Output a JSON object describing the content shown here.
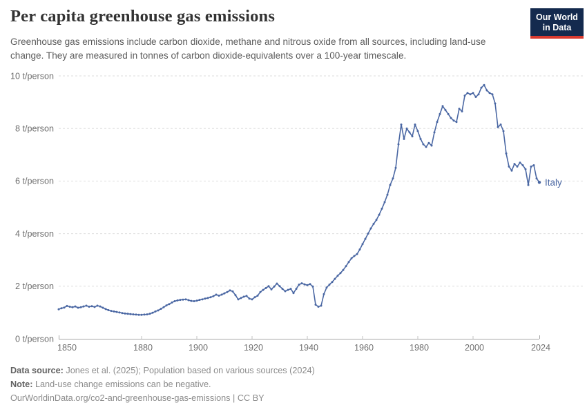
{
  "header": {
    "title": "Per capita greenhouse gas emissions",
    "subtitle": "Greenhouse gas emissions include carbon dioxide, methane and nitrous oxide from all sources, including land-use change. They are measured in tonnes of carbon dioxide-equivalents over a 100-year timescale.",
    "logo": {
      "line1": "Our World",
      "line2": "in Data",
      "bg_color": "#142a4e",
      "stripe_color": "#d93a2f"
    }
  },
  "footer": {
    "source_label": "Data source:",
    "source_text": " Jones et al. (2025); Population based on various sources (2024)",
    "note_label": "Note:",
    "note_text": " Land-use change emissions can be negative.",
    "license_line": "OurWorldinData.org/co2-and-greenhouse-gas-emissions | CC BY"
  },
  "chart_data": {
    "type": "line",
    "title": "Per capita greenhouse gas emissions",
    "xlabel": "",
    "ylabel": "t/person",
    "xlim": [
      1850,
      2024
    ],
    "ylim": [
      0,
      10
    ],
    "grid": "horizontal-dashed",
    "x_ticks": [
      1850,
      1880,
      1900,
      1920,
      1940,
      1960,
      1980,
      2000,
      2024
    ],
    "y_ticks": {
      "values": [
        0,
        2,
        4,
        6,
        8,
        10
      ],
      "labels": [
        "0 t/person",
        "2 t/person",
        "4 t/person",
        "6 t/person",
        "8 t/person",
        "10 t/person"
      ]
    },
    "x": [
      1850,
      1851,
      1852,
      1853,
      1854,
      1855,
      1856,
      1857,
      1858,
      1859,
      1860,
      1861,
      1862,
      1863,
      1864,
      1865,
      1866,
      1867,
      1868,
      1869,
      1870,
      1871,
      1872,
      1873,
      1874,
      1875,
      1876,
      1877,
      1878,
      1879,
      1880,
      1881,
      1882,
      1883,
      1884,
      1885,
      1886,
      1887,
      1888,
      1889,
      1890,
      1891,
      1892,
      1893,
      1894,
      1895,
      1896,
      1897,
      1898,
      1899,
      1900,
      1901,
      1902,
      1903,
      1904,
      1905,
      1906,
      1907,
      1908,
      1909,
      1910,
      1911,
      1912,
      1913,
      1914,
      1915,
      1916,
      1917,
      1918,
      1919,
      1920,
      1921,
      1922,
      1923,
      1924,
      1925,
      1926,
      1927,
      1928,
      1929,
      1930,
      1931,
      1932,
      1933,
      1934,
      1935,
      1936,
      1937,
      1938,
      1939,
      1940,
      1941,
      1942,
      1943,
      1944,
      1945,
      1946,
      1947,
      1948,
      1949,
      1950,
      1951,
      1952,
      1953,
      1954,
      1955,
      1956,
      1957,
      1958,
      1959,
      1960,
      1961,
      1962,
      1963,
      1964,
      1965,
      1966,
      1967,
      1968,
      1969,
      1970,
      1971,
      1972,
      1973,
      1974,
      1975,
      1976,
      1977,
      1978,
      1979,
      1980,
      1981,
      1982,
      1983,
      1984,
      1985,
      1986,
      1987,
      1988,
      1989,
      1990,
      1991,
      1992,
      1993,
      1994,
      1995,
      1996,
      1997,
      1998,
      1999,
      2000,
      2001,
      2002,
      2003,
      2004,
      2005,
      2006,
      2007,
      2008,
      2009,
      2010,
      2011,
      2012,
      2013,
      2014,
      2015,
      2016,
      2017,
      2018,
      2019,
      2020,
      2021,
      2022,
      2023,
      2024
    ],
    "series": [
      {
        "name": "Italy",
        "color": "#4a67a3",
        "values": [
          1.12,
          1.16,
          1.19,
          1.25,
          1.22,
          1.2,
          1.23,
          1.18,
          1.2,
          1.23,
          1.26,
          1.22,
          1.24,
          1.21,
          1.26,
          1.23,
          1.18,
          1.13,
          1.09,
          1.06,
          1.04,
          1.02,
          1.0,
          0.98,
          0.96,
          0.95,
          0.94,
          0.93,
          0.92,
          0.91,
          0.91,
          0.92,
          0.93,
          0.95,
          0.99,
          1.04,
          1.08,
          1.14,
          1.2,
          1.27,
          1.32,
          1.38,
          1.43,
          1.46,
          1.48,
          1.49,
          1.5,
          1.47,
          1.44,
          1.43,
          1.45,
          1.48,
          1.5,
          1.53,
          1.55,
          1.58,
          1.62,
          1.68,
          1.64,
          1.68,
          1.73,
          1.78,
          1.84,
          1.8,
          1.66,
          1.5,
          1.55,
          1.6,
          1.63,
          1.53,
          1.5,
          1.58,
          1.64,
          1.78,
          1.86,
          1.93,
          2.0,
          1.88,
          1.99,
          2.1,
          2.0,
          1.9,
          1.81,
          1.86,
          1.9,
          1.74,
          1.9,
          2.06,
          2.11,
          2.07,
          2.04,
          2.08,
          1.99,
          1.3,
          1.22,
          1.26,
          1.7,
          1.95,
          2.06,
          2.16,
          2.28,
          2.4,
          2.5,
          2.62,
          2.76,
          2.92,
          3.06,
          3.15,
          3.22,
          3.4,
          3.6,
          3.8,
          4.0,
          4.2,
          4.37,
          4.52,
          4.72,
          4.95,
          5.2,
          5.48,
          5.85,
          6.1,
          6.5,
          7.4,
          8.15,
          7.6,
          8.0,
          7.85,
          7.7,
          8.15,
          7.9,
          7.6,
          7.4,
          7.3,
          7.45,
          7.35,
          7.85,
          8.25,
          8.55,
          8.85,
          8.7,
          8.55,
          8.4,
          8.3,
          8.25,
          8.75,
          8.65,
          9.25,
          9.35,
          9.3,
          9.35,
          9.2,
          9.3,
          9.55,
          9.65,
          9.45,
          9.35,
          9.3,
          8.95,
          8.05,
          8.15,
          7.9,
          7.05,
          6.55,
          6.4,
          6.65,
          6.55,
          6.7,
          6.6,
          6.45,
          5.85,
          6.55,
          6.6,
          6.1,
          5.95
        ]
      }
    ],
    "legend_position": "end-of-line",
    "end_label": "Italy",
    "grid_color": "#dedede",
    "axis_color": "#a5a5a5"
  }
}
